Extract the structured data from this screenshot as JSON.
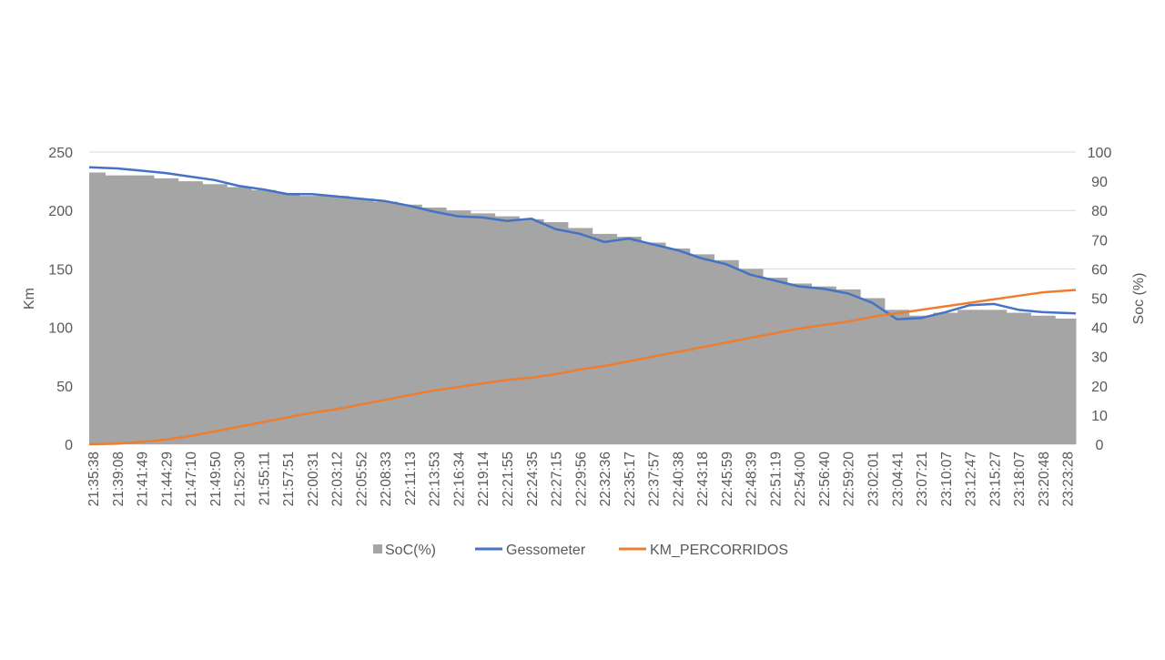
{
  "chart_data": {
    "type": "area+line",
    "title": "",
    "ylabel": "Km",
    "y2label": "Soc (%)",
    "ylim": [
      0,
      250
    ],
    "y2lim": [
      0,
      100
    ],
    "yticks": [
      0,
      50,
      100,
      150,
      200,
      250
    ],
    "y2ticks": [
      0,
      10,
      20,
      30,
      40,
      50,
      60,
      70,
      80,
      90,
      100
    ],
    "grid": true,
    "legend_position": "bottom",
    "colors": {
      "soc": "#a5a5a5",
      "gessometer": "#4472c4",
      "km": "#ed7d31",
      "grid": "#d9d9d9",
      "text": "#595959"
    },
    "categories": [
      "21:35:38",
      "21:39:08",
      "21:41:49",
      "21:44:29",
      "21:47:10",
      "21:49:50",
      "21:52:30",
      "21:55:11",
      "21:57:51",
      "22:00:31",
      "22:03:12",
      "22:05:52",
      "22:08:33",
      "22:11:13",
      "22:13:53",
      "22:16:34",
      "22:19:14",
      "22:21:55",
      "22:24:35",
      "22:27:15",
      "22:29:56",
      "22:32:36",
      "22:35:17",
      "22:37:57",
      "22:40:38",
      "22:43:18",
      "22:45:59",
      "22:48:39",
      "22:51:19",
      "22:54:00",
      "22:56:40",
      "22:59:20",
      "23:02:01",
      "23:04:41",
      "23:07:21",
      "23:10:07",
      "23:12:47",
      "23:15:27",
      "23:18:07",
      "23:20:48",
      "23:23:28"
    ],
    "series": [
      {
        "name": "SoC(%)",
        "type": "area",
        "axis": "right",
        "values": [
          93,
          92,
          92,
          91,
          90,
          89,
          88,
          87,
          86,
          85,
          85,
          84,
          83,
          82,
          81,
          80,
          79,
          78,
          77,
          76,
          74,
          72,
          71,
          69,
          67,
          65,
          63,
          60,
          57,
          55,
          54,
          53,
          50,
          46,
          44,
          45,
          46,
          46,
          45,
          44,
          43
        ]
      },
      {
        "name": "Gessometer",
        "type": "line",
        "axis": "left",
        "values": [
          237,
          236,
          234,
          232,
          229,
          226,
          221,
          218,
          214,
          214,
          212,
          210,
          208,
          204,
          199,
          195,
          194,
          191,
          193,
          184,
          180,
          173,
          176,
          171,
          166,
          159,
          154,
          145,
          140,
          135,
          133,
          129,
          121,
          107,
          108,
          113,
          119,
          120,
          115,
          113,
          112
        ]
      },
      {
        "name": "KM_PERCORRIDOS",
        "type": "line",
        "axis": "left",
        "values": [
          0,
          0.5,
          2,
          4,
          7,
          11,
          15,
          19,
          23,
          27,
          30,
          34,
          38,
          42,
          46,
          49,
          52,
          55,
          57,
          60,
          64,
          67,
          71,
          75,
          79,
          83,
          87,
          91,
          95,
          99,
          102,
          105,
          109,
          112,
          115,
          118,
          121,
          124,
          127,
          130,
          132
        ]
      }
    ]
  }
}
